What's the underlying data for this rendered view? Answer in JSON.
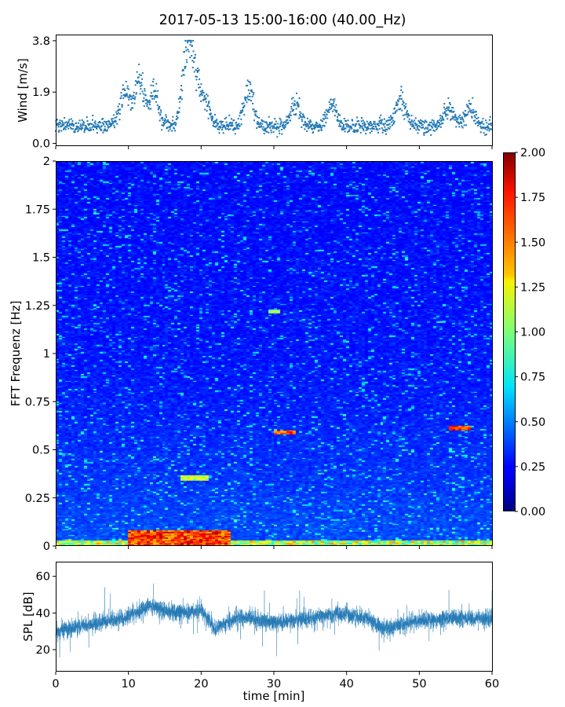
{
  "title": "2017-05-13 15:00-16:00 (40.00_Hz)",
  "chart_data": [
    {
      "type": "scatter",
      "ylabel": "Wind [m/s]",
      "xlim": [
        0,
        60
      ],
      "ylim": [
        -0.1,
        4.0
      ],
      "yticks": [
        "0.0",
        "1.9",
        "3.8"
      ],
      "color": "#1f77b4",
      "x_unit": "min",
      "baseline_mean": 0.65,
      "episodes": [
        {
          "x": 9.5,
          "peak": 2.3
        },
        {
          "x": 11.5,
          "peak": 2.8
        },
        {
          "x": 13.5,
          "peak": 2.2
        },
        {
          "x": 18.0,
          "peak": 3.8
        },
        {
          "x": 19.0,
          "peak": 3.0
        },
        {
          "x": 20.5,
          "peak": 1.8
        },
        {
          "x": 26.5,
          "peak": 2.3
        },
        {
          "x": 33.0,
          "peak": 1.7
        },
        {
          "x": 38.0,
          "peak": 1.6
        },
        {
          "x": 47.5,
          "peak": 1.9
        },
        {
          "x": 54.0,
          "peak": 1.5
        },
        {
          "x": 57.0,
          "peak": 1.5
        }
      ]
    },
    {
      "type": "heatmap",
      "ylabel": "FFT Frequenz [Hz]",
      "xlim": [
        0,
        60
      ],
      "ylim": [
        0,
        2
      ],
      "yticks": [
        "0",
        "0.25",
        "0.5",
        "0.75",
        "1",
        "1.25",
        "1.5",
        "1.75",
        "2"
      ],
      "colormap": "jet",
      "colorbar": {
        "min": 0,
        "max": 2,
        "ticks": [
          "0.00",
          "0.25",
          "0.50",
          "0.75",
          "1.00",
          "1.25",
          "1.50",
          "1.75",
          "2.00"
        ]
      },
      "features": [
        {
          "desc": "strong low-frequency energy",
          "freq_max": 0.05,
          "x_range": [
            10,
            24
          ],
          "level": 1.9
        },
        {
          "desc": "band near 0.59 Hz",
          "freq": 0.59,
          "x_range": [
            30,
            33
          ],
          "level": 1.8
        },
        {
          "desc": "band near 0.61 Hz",
          "freq": 0.61,
          "x_range": [
            54,
            57
          ],
          "level": 1.9
        },
        {
          "desc": "band near 0.35 Hz",
          "freq": 0.35,
          "x_range": [
            17,
            21
          ],
          "level": 1.3
        },
        {
          "desc": "band near 1.22 Hz",
          "freq": 1.22,
          "x_range": [
            29,
            31
          ],
          "level": 1.2
        }
      ]
    },
    {
      "type": "line",
      "ylabel": "SPL [dB]",
      "xlabel": "time [min]",
      "xlim": [
        0,
        60
      ],
      "ylim": [
        8,
        68
      ],
      "yticks": [
        "20",
        "40",
        "60"
      ],
      "xticks": [
        "0",
        "10",
        "20",
        "30",
        "40",
        "50",
        "60"
      ],
      "color": "#1f77b4",
      "envelope": [
        {
          "x": 0,
          "mean": 30
        },
        {
          "x": 5,
          "mean": 34
        },
        {
          "x": 10,
          "mean": 38
        },
        {
          "x": 13,
          "mean": 44
        },
        {
          "x": 16,
          "mean": 40
        },
        {
          "x": 20,
          "mean": 41
        },
        {
          "x": 22,
          "mean": 31
        },
        {
          "x": 25,
          "mean": 38
        },
        {
          "x": 30,
          "mean": 35
        },
        {
          "x": 35,
          "mean": 37
        },
        {
          "x": 39,
          "mean": 40
        },
        {
          "x": 43,
          "mean": 37
        },
        {
          "x": 45,
          "mean": 31
        },
        {
          "x": 50,
          "mean": 36
        },
        {
          "x": 55,
          "mean": 37
        },
        {
          "x": 60,
          "mean": 37
        }
      ]
    }
  ]
}
